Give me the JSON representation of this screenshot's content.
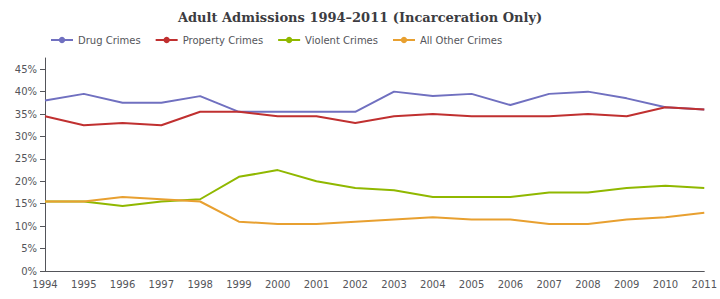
{
  "chart_data": {
    "type": "line",
    "title": "Adult Admissions 1994–2011 (Incarceration Only)",
    "categories": [
      "1994",
      "1995",
      "1996",
      "1997",
      "1998",
      "1999",
      "2000",
      "2001",
      "2002",
      "2003",
      "2004",
      "2005",
      "2006",
      "2007",
      "2008",
      "2009",
      "2010",
      "2011"
    ],
    "series": [
      {
        "name": "Drug Crimes",
        "color": "#7070c0",
        "values": [
          0.38,
          0.395,
          0.375,
          0.375,
          0.39,
          0.355,
          0.355,
          0.355,
          0.355,
          0.4,
          0.39,
          0.395,
          0.37,
          0.395,
          0.4,
          0.385,
          0.365,
          0.36
        ]
      },
      {
        "name": "Property Crimes",
        "color": "#c03030",
        "values": [
          0.345,
          0.325,
          0.33,
          0.325,
          0.355,
          0.355,
          0.345,
          0.345,
          0.33,
          0.345,
          0.35,
          0.345,
          0.345,
          0.345,
          0.35,
          0.345,
          0.365,
          0.36
        ]
      },
      {
        "name": "Violent Crimes",
        "color": "#90b800",
        "values": [
          0.155,
          0.155,
          0.145,
          0.155,
          0.16,
          0.21,
          0.225,
          0.2,
          0.185,
          0.18,
          0.165,
          0.165,
          0.165,
          0.175,
          0.175,
          0.185,
          0.19,
          0.185
        ]
      },
      {
        "name": "All Other Crimes",
        "color": "#e8a030",
        "values": [
          0.155,
          0.155,
          0.165,
          0.16,
          0.155,
          0.11,
          0.105,
          0.105,
          0.11,
          0.115,
          0.12,
          0.115,
          0.115,
          0.105,
          0.105,
          0.115,
          0.12,
          0.13
        ]
      }
    ],
    "ylim": [
      0.0,
      0.475
    ],
    "yticks": [
      {
        "value": 0.0,
        "label": "0%"
      },
      {
        "value": 0.05,
        "label": "5%"
      },
      {
        "value": 0.1,
        "label": "10%"
      },
      {
        "value": 0.15,
        "label": "15%"
      },
      {
        "value": 0.2,
        "label": "20%"
      },
      {
        "value": 0.25,
        "label": "25%"
      },
      {
        "value": 0.3,
        "label": "30%"
      },
      {
        "value": 0.35,
        "label": "35%"
      },
      {
        "value": 0.4,
        "label": "40%"
      },
      {
        "value": 0.45,
        "label": "45%"
      }
    ],
    "grid": false,
    "legend": "upper left"
  }
}
